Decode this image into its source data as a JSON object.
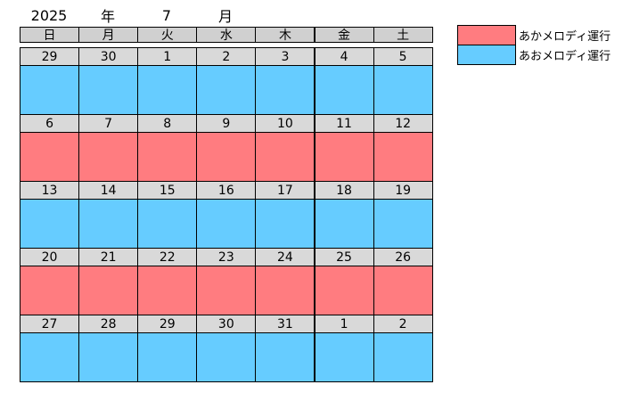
{
  "header": {
    "year": "2025",
    "year_unit": "年",
    "month": "7",
    "month_unit": "月"
  },
  "weekdays": [
    "日",
    "月",
    "火",
    "水",
    "木",
    "金",
    "土"
  ],
  "legend": [
    {
      "label": "あかメロディ運行",
      "color": "#ff7c80"
    },
    {
      "label": "あおメロディ運行",
      "color": "#66ccff"
    }
  ],
  "weeks": [
    {
      "days": [
        29,
        30,
        1,
        2,
        3,
        4,
        5
      ],
      "color": "#66ccff"
    },
    {
      "days": [
        6,
        7,
        8,
        9,
        10,
        11,
        12
      ],
      "color": "#ff7c80"
    },
    {
      "days": [
        13,
        14,
        15,
        16,
        17,
        18,
        19
      ],
      "color": "#66ccff"
    },
    {
      "days": [
        20,
        21,
        22,
        23,
        24,
        25,
        26
      ],
      "color": "#ff7c80"
    },
    {
      "days": [
        27,
        28,
        29,
        30,
        31,
        1,
        2
      ],
      "color": "#66ccff"
    }
  ]
}
